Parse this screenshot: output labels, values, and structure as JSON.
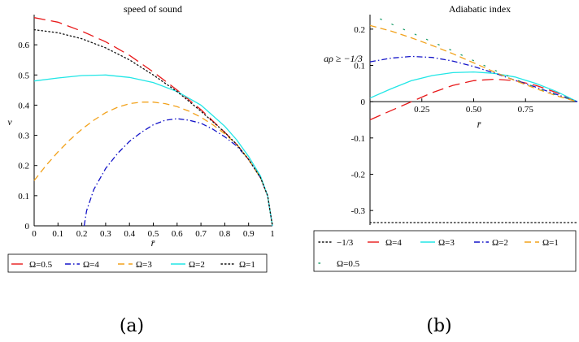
{
  "panels": [
    {
      "caption": "(a)",
      "chart_data": {
        "type": "line",
        "title": "speed of sound",
        "xlabel": "r̄",
        "ylabel": "v",
        "xlim": [
          0,
          1
        ],
        "ylim": [
          0,
          0.7
        ],
        "xticks": [
          "0",
          "0.1",
          "0.2",
          "0.3",
          "0.4",
          "0.5",
          "0.6",
          "0.7",
          "0.8",
          "0.9",
          "1"
        ],
        "yticks": [
          "0",
          "0.1",
          "0.2",
          "0.3",
          "0.4",
          "0.5",
          "0.6"
        ],
        "legend_position": "bottom",
        "series": [
          {
            "name": "Ω=0.5",
            "color": "#e8191a",
            "dash": "long-dash",
            "x": [
              0,
              0.1,
              0.2,
              0.3,
              0.4,
              0.5,
              0.6,
              0.7,
              0.8,
              0.85,
              0.9,
              0.95,
              0.98,
              1.0
            ],
            "y": [
              0.69,
              0.675,
              0.645,
              0.61,
              0.565,
              0.51,
              0.45,
              0.385,
              0.31,
              0.27,
              0.22,
              0.16,
              0.1,
              0
            ]
          },
          {
            "name": "Ω=4",
            "color": "#1414c8",
            "dash": "dash-dot",
            "x": [
              0.21,
              0.22,
              0.25,
              0.3,
              0.35,
              0.4,
              0.45,
              0.5,
              0.55,
              0.6,
              0.65,
              0.7,
              0.75,
              0.8,
              0.85,
              0.9,
              0.95,
              0.98,
              1.0
            ],
            "y": [
              0.0,
              0.05,
              0.12,
              0.19,
              0.24,
              0.28,
              0.31,
              0.335,
              0.35,
              0.355,
              0.35,
              0.34,
              0.32,
              0.295,
              0.265,
              0.22,
              0.16,
              0.1,
              0
            ]
          },
          {
            "name": "Ω=3",
            "color": "#f2a21c",
            "dash": "dash",
            "x": [
              0,
              0.05,
              0.1,
              0.15,
              0.2,
              0.25,
              0.3,
              0.35,
              0.4,
              0.45,
              0.5,
              0.55,
              0.6,
              0.65,
              0.7,
              0.75,
              0.8,
              0.85,
              0.9,
              0.95,
              0.98,
              1.0
            ],
            "y": [
              0.15,
              0.2,
              0.245,
              0.285,
              0.32,
              0.35,
              0.375,
              0.393,
              0.405,
              0.41,
              0.41,
              0.405,
              0.395,
              0.38,
              0.36,
              0.335,
              0.305,
              0.27,
              0.22,
              0.16,
              0.1,
              0
            ]
          },
          {
            "name": "Ω=2",
            "color": "#22e6e6",
            "dash": "solid",
            "x": [
              0,
              0.1,
              0.2,
              0.3,
              0.4,
              0.5,
              0.6,
              0.7,
              0.8,
              0.85,
              0.9,
              0.95,
              0.98,
              1.0
            ],
            "y": [
              0.48,
              0.49,
              0.498,
              0.5,
              0.492,
              0.475,
              0.445,
              0.4,
              0.33,
              0.285,
              0.23,
              0.165,
              0.1,
              0
            ]
          },
          {
            "name": "Ω=1",
            "color": "#111111",
            "dash": "dot",
            "x": [
              0,
              0.1,
              0.2,
              0.3,
              0.4,
              0.5,
              0.6,
              0.7,
              0.8,
              0.85,
              0.9,
              0.95,
              0.98,
              1.0
            ],
            "y": [
              0.65,
              0.64,
              0.62,
              0.59,
              0.55,
              0.5,
              0.445,
              0.38,
              0.31,
              0.27,
              0.22,
              0.16,
              0.1,
              0
            ]
          }
        ]
      }
    },
    {
      "caption": "(b)",
      "chart_data": {
        "type": "line",
        "title": "Adiabatic index",
        "xlabel": "r̄",
        "ylabel": "aρ ≥ −1/3",
        "xlim": [
          0,
          1
        ],
        "ylim": [
          -0.34,
          0.24
        ],
        "xticks": [
          "0.25",
          "0.50",
          "0.75"
        ],
        "yticks": [
          "0.2",
          "0.1",
          "0",
          "-0.1",
          "-0.2",
          "-0.3"
        ],
        "legend_position": "bottom",
        "series": [
          {
            "name": "−1/3",
            "color": "#111111",
            "dash": "dot",
            "x": [
              0,
              1
            ],
            "y": [
              -0.3333,
              -0.3333
            ]
          },
          {
            "name": "Ω=4",
            "color": "#e8191a",
            "dash": "long-dash",
            "x": [
              0,
              0.1,
              0.2,
              0.3,
              0.4,
              0.5,
              0.6,
              0.7,
              0.8,
              0.9,
              1.0
            ],
            "y": [
              -0.05,
              -0.025,
              0.0,
              0.025,
              0.045,
              0.058,
              0.062,
              0.058,
              0.045,
              0.025,
              0
            ]
          },
          {
            "name": "Ω=3",
            "color": "#22e6e6",
            "dash": "solid",
            "x": [
              0,
              0.1,
              0.2,
              0.3,
              0.4,
              0.5,
              0.6,
              0.7,
              0.8,
              0.9,
              1.0
            ],
            "y": [
              0.01,
              0.035,
              0.058,
              0.072,
              0.08,
              0.082,
              0.078,
              0.068,
              0.05,
              0.028,
              0
            ]
          },
          {
            "name": "Ω=2",
            "color": "#1414c8",
            "dash": "dash-dot",
            "x": [
              0,
              0.1,
              0.2,
              0.3,
              0.4,
              0.5,
              0.6,
              0.7,
              0.8,
              0.9,
              1.0
            ],
            "y": [
              0.11,
              0.12,
              0.125,
              0.122,
              0.112,
              0.097,
              0.079,
              0.059,
              0.04,
              0.02,
              0
            ]
          },
          {
            "name": "Ω=1",
            "color": "#f2a21c",
            "dash": "dash",
            "x": [
              0,
              0.1,
              0.2,
              0.3,
              0.4,
              0.5,
              0.6,
              0.7,
              0.8,
              0.9,
              1.0
            ],
            "y": [
              0.21,
              0.195,
              0.176,
              0.155,
              0.132,
              0.107,
              0.082,
              0.058,
              0.036,
              0.016,
              0
            ]
          },
          {
            "name": "Ω=0.5",
            "color": "#22a06e",
            "dash": "sparse-dot",
            "x": [
              0.05,
              0.1,
              0.2,
              0.3,
              0.4,
              0.5,
              0.6,
              0.7,
              0.8,
              0.9,
              1.0
            ],
            "y": [
              0.228,
              0.215,
              0.19,
              0.165,
              0.14,
              0.113,
              0.087,
              0.062,
              0.039,
              0.018,
              0
            ]
          }
        ]
      }
    }
  ]
}
